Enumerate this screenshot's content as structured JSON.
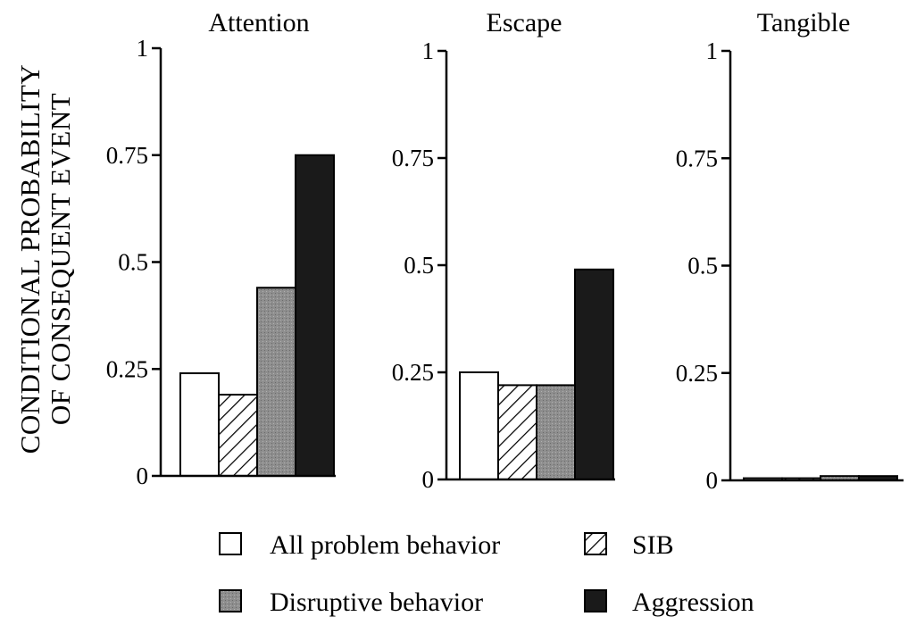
{
  "chart_data": {
    "type": "bar",
    "ylabel_lines": [
      "CONDITIONAL PROBABILITY",
      "OF CONSEQUENT EVENT"
    ],
    "ylim": [
      0,
      1
    ],
    "yticks": [
      "0",
      "0.25",
      "0.5",
      "0.75",
      "1"
    ],
    "grid": false,
    "legend_position": "bottom",
    "panels": [
      {
        "title": "Attention",
        "series_values": [
          0.24,
          0.19,
          0.44,
          0.75
        ]
      },
      {
        "title": "Escape",
        "series_values": [
          0.25,
          0.22,
          0.22,
          0.49
        ]
      },
      {
        "title": "Tangible",
        "series_values": [
          0.005,
          0.005,
          0.01,
          0.01
        ]
      }
    ],
    "series": [
      {
        "name": "All problem behavior",
        "fill": "white",
        "color": "#ffffff"
      },
      {
        "name": "SIB",
        "fill": "hatch",
        "color": "#ffffff"
      },
      {
        "name": "Disruptive behavior",
        "fill": "gray",
        "color": "#8a8a8a"
      },
      {
        "name": "Aggression",
        "fill": "black",
        "color": "#1a1a1a"
      }
    ]
  }
}
